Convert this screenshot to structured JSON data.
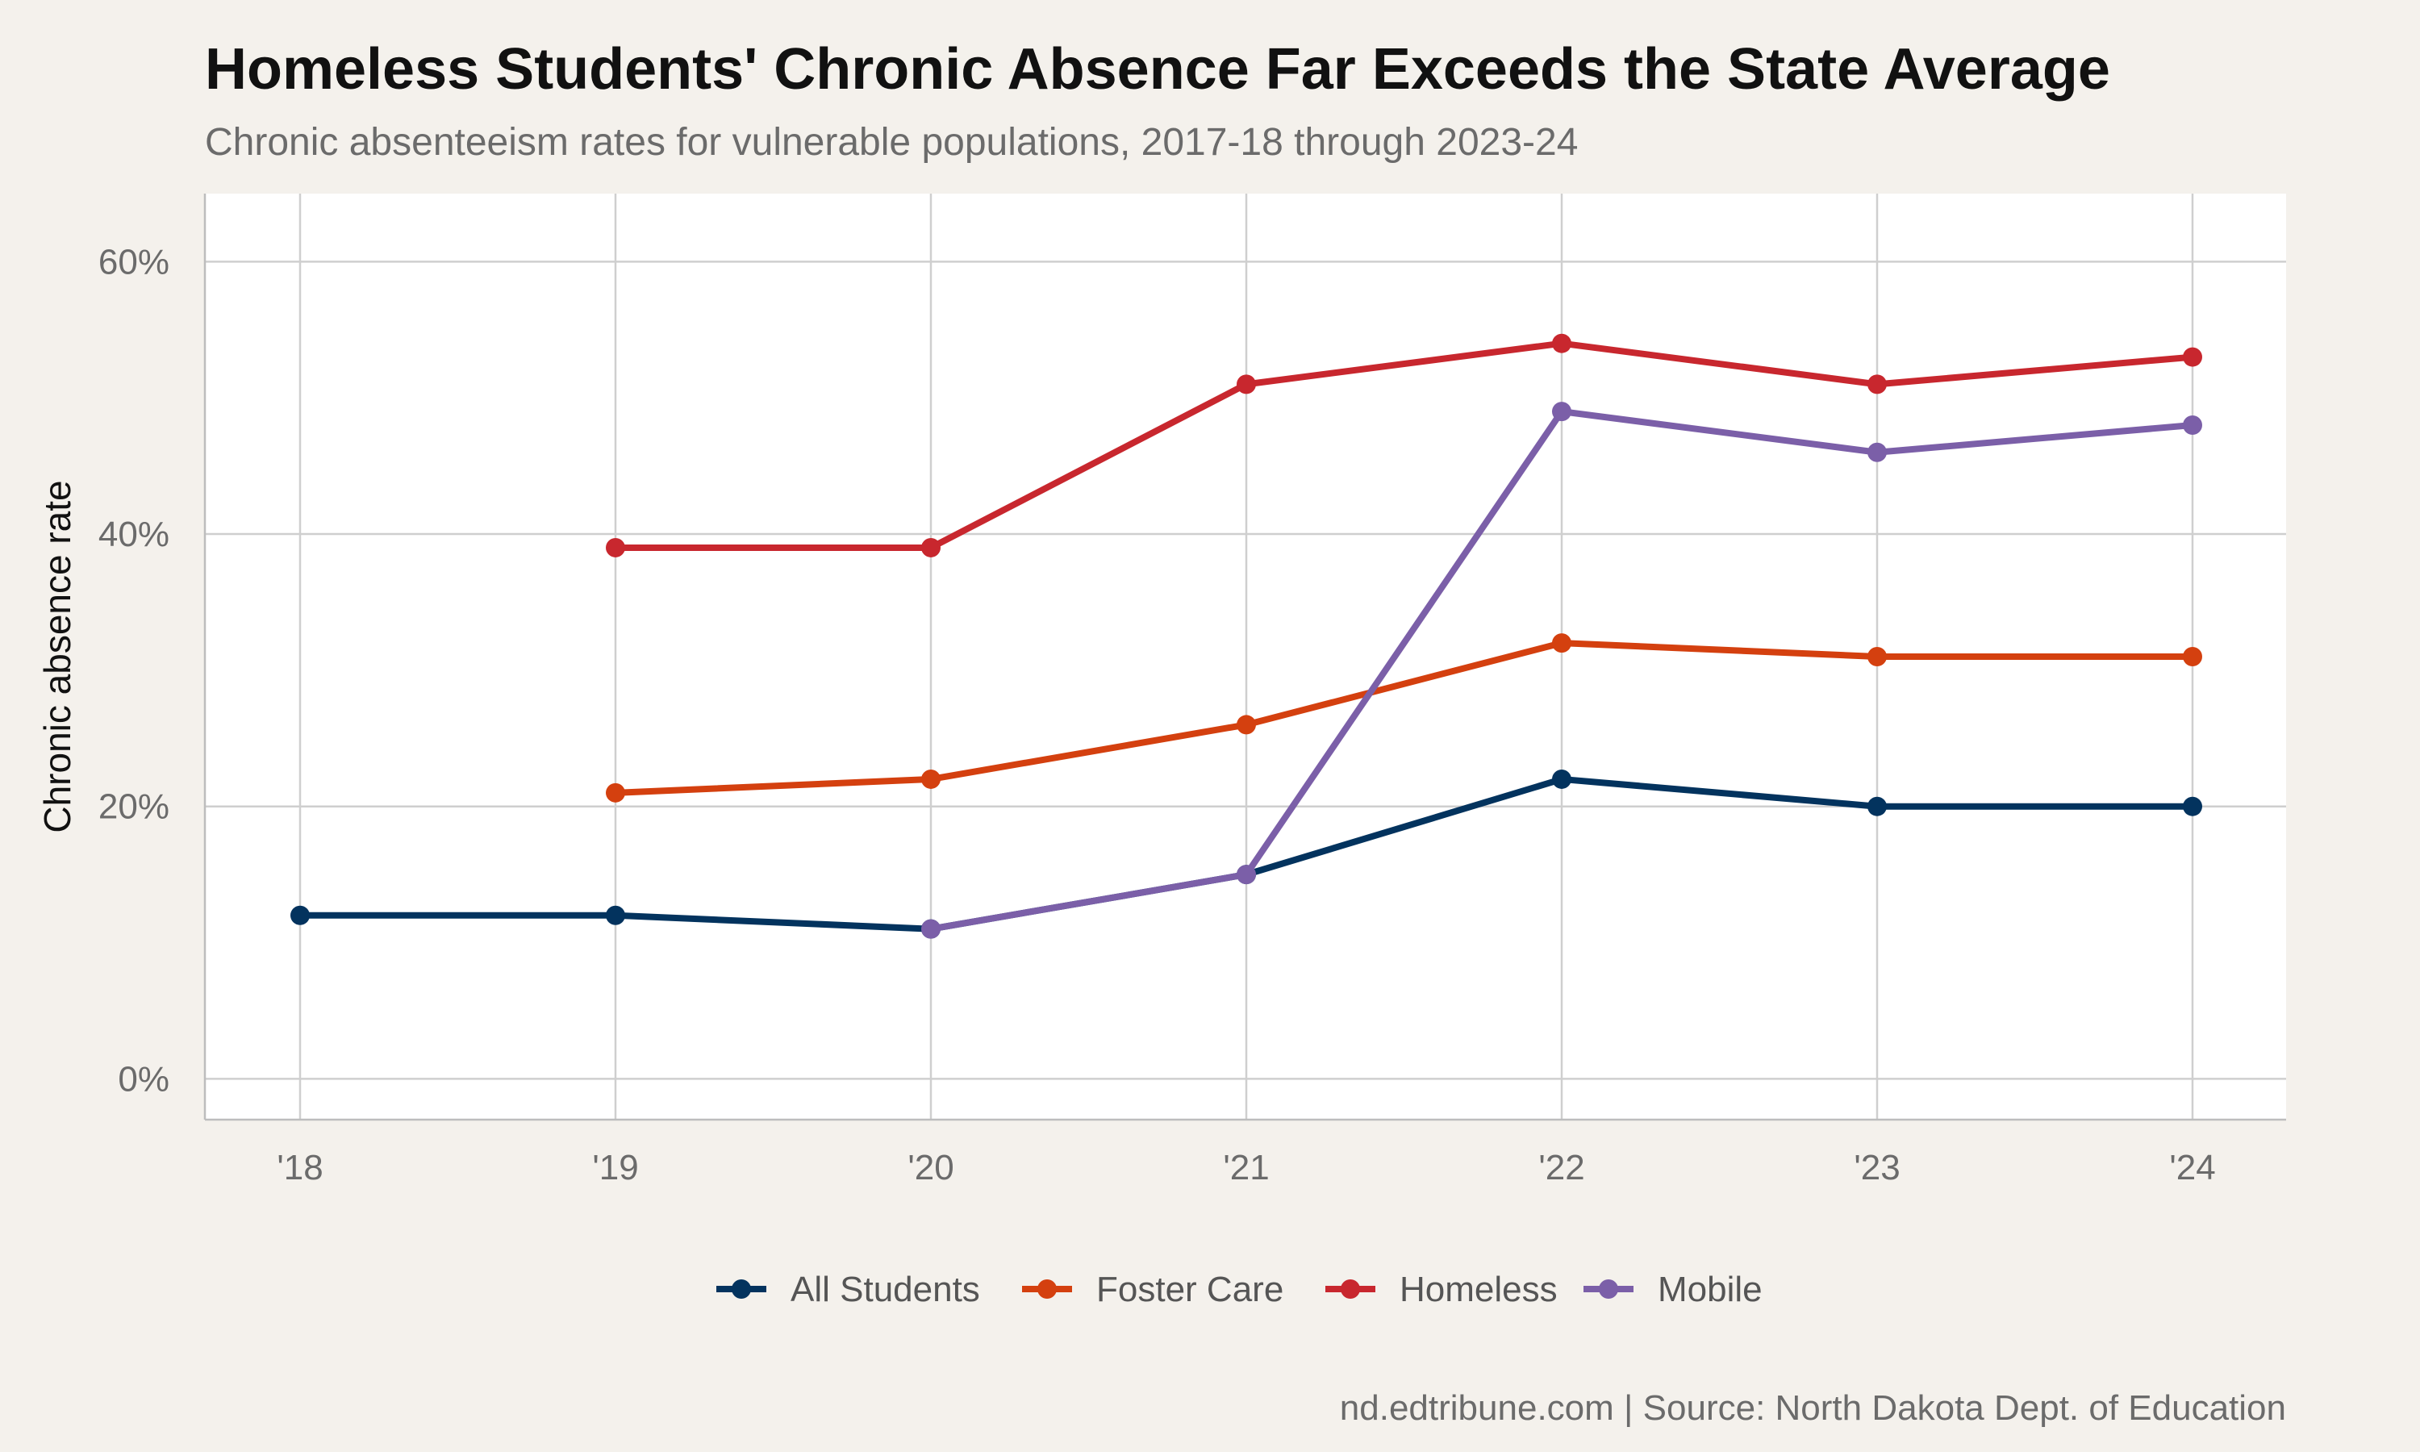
{
  "title": "Homeless Students' Chronic Absence Far Exceeds the State Average",
  "subtitle": "Chronic absenteeism rates for vulnerable populations, 2017-18 through 2023-24",
  "caption": "nd.edtribune.com | Source: North Dakota Dept. of Education",
  "chart_data": {
    "type": "line",
    "x": [
      "'18",
      "'19",
      "'20",
      "'21",
      "'22",
      "'23",
      "'24"
    ],
    "ylabel": "Chronic absence rate",
    "xlabel": "",
    "ylim": [
      -3,
      65
    ],
    "yticks": [
      0,
      20,
      40,
      60
    ],
    "ytick_labels": [
      "0%",
      "20%",
      "40%",
      "60%"
    ],
    "grid": true,
    "legend_position": "bottom",
    "series": [
      {
        "name": "All Students",
        "color": "#03335e",
        "values": [
          12,
          12,
          11,
          15,
          22,
          20,
          20
        ]
      },
      {
        "name": "Foster Care",
        "color": "#d4400f",
        "values": [
          null,
          21,
          22,
          26,
          32,
          31,
          31
        ]
      },
      {
        "name": "Homeless",
        "color": "#c8272e",
        "values": [
          null,
          39,
          39,
          51,
          54,
          51,
          53
        ]
      },
      {
        "name": "Mobile",
        "color": "#7b5fa8",
        "values": [
          null,
          null,
          11,
          15,
          49,
          46,
          48
        ]
      }
    ]
  }
}
